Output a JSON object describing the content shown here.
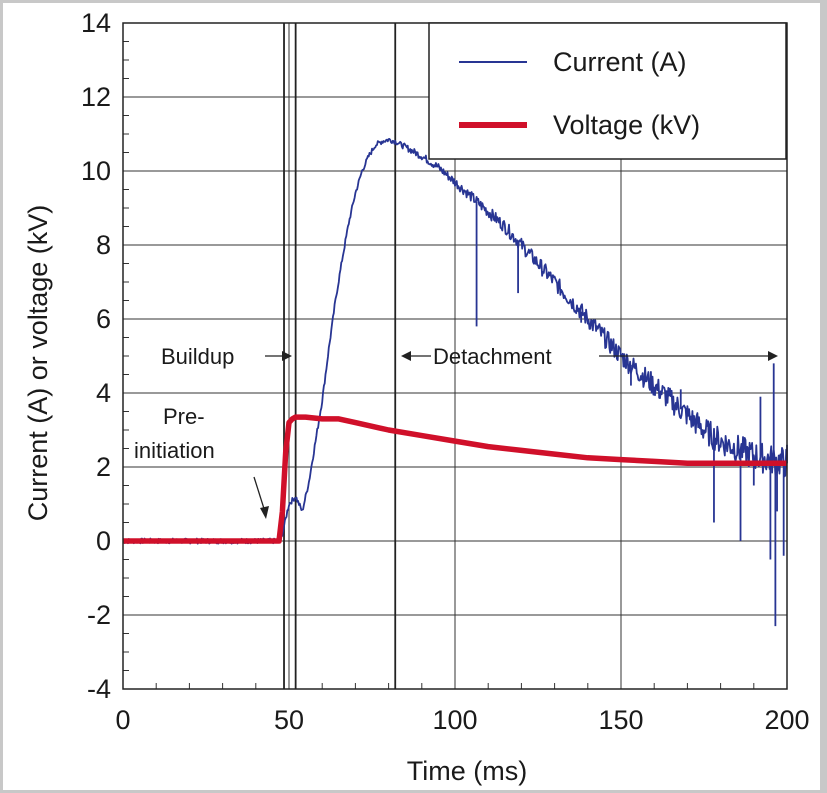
{
  "chart_data": {
    "type": "line",
    "title": "",
    "xlabel": "Time (ms)",
    "ylabel": "Current (A) or voltage (kV)",
    "xlim": [
      0,
      200
    ],
    "ylim": [
      -4,
      14
    ],
    "xticks": [
      0,
      50,
      100,
      150,
      200
    ],
    "yticks": [
      -4,
      -2,
      0,
      2,
      4,
      6,
      8,
      10,
      12,
      14
    ],
    "grid": true,
    "legend_position": "top-right",
    "series": [
      {
        "name": "Current (A)",
        "color": "#283593",
        "x": [
          0,
          10,
          20,
          30,
          40,
          47,
          48,
          50,
          52,
          54,
          56,
          58,
          60,
          62,
          64,
          66,
          68,
          70,
          72,
          74,
          76,
          78,
          80,
          82,
          84,
          86,
          90,
          95,
          100,
          105,
          110,
          115,
          120,
          125,
          130,
          135,
          140,
          145,
          150,
          155,
          160,
          165,
          170,
          175,
          180,
          185,
          190,
          195,
          200
        ],
        "values": [
          0,
          0,
          0,
          0,
          0,
          0,
          0.2,
          1,
          1.2,
          0.8,
          1.6,
          2.7,
          3.8,
          5.2,
          6.5,
          7.6,
          8.6,
          9.4,
          10.0,
          10.4,
          10.7,
          10.8,
          10.85,
          10.8,
          10.7,
          10.6,
          10.4,
          10.1,
          9.7,
          9.3,
          8.9,
          8.5,
          8.0,
          7.5,
          7.0,
          6.5,
          6.0,
          5.5,
          5.0,
          4.6,
          4.2,
          3.8,
          3.4,
          3.0,
          2.7,
          2.5,
          2.3,
          2.2,
          2.1
        ],
        "spikes": [
          {
            "x": 106.5,
            "y": 5.8
          },
          {
            "x": 119,
            "y": 6.7
          },
          {
            "x": 138,
            "y": 5.9
          },
          {
            "x": 153,
            "y": 4.2
          },
          {
            "x": 168,
            "y": 4.1
          },
          {
            "x": 178,
            "y": 0.5
          },
          {
            "x": 186,
            "y": 0.0
          },
          {
            "x": 190,
            "y": 1.5
          },
          {
            "x": 192,
            "y": 3.9
          },
          {
            "x": 195,
            "y": -0.5
          },
          {
            "x": 196,
            "y": 4.8
          },
          {
            "x": 197,
            "y": 0.8
          },
          {
            "x": 196.5,
            "y": -2.3
          },
          {
            "x": 199,
            "y": -0.4
          },
          {
            "x": 200,
            "y": 2.6
          }
        ]
      },
      {
        "name": "Voltage (kV)",
        "color": "#d0102a",
        "x": [
          0,
          10,
          20,
          30,
          40,
          47,
          48,
          49,
          50,
          51,
          52,
          55,
          60,
          65,
          70,
          80,
          90,
          100,
          110,
          120,
          130,
          140,
          150,
          160,
          170,
          180,
          190,
          200
        ],
        "values": [
          0,
          0,
          0,
          0,
          0,
          0,
          0.8,
          2.4,
          3.2,
          3.3,
          3.35,
          3.35,
          3.3,
          3.3,
          3.2,
          3.0,
          2.85,
          2.7,
          2.55,
          2.45,
          2.35,
          2.25,
          2.2,
          2.15,
          2.1,
          2.1,
          2.1,
          2.1
        ]
      }
    ],
    "vertical_lines": [
      48.5,
      52,
      82
    ],
    "annotations": {
      "preinitiation_line1": "Pre-",
      "preinitiation_line2": "initiation",
      "buildup": "Buildup",
      "detachment": "Detachment"
    }
  }
}
